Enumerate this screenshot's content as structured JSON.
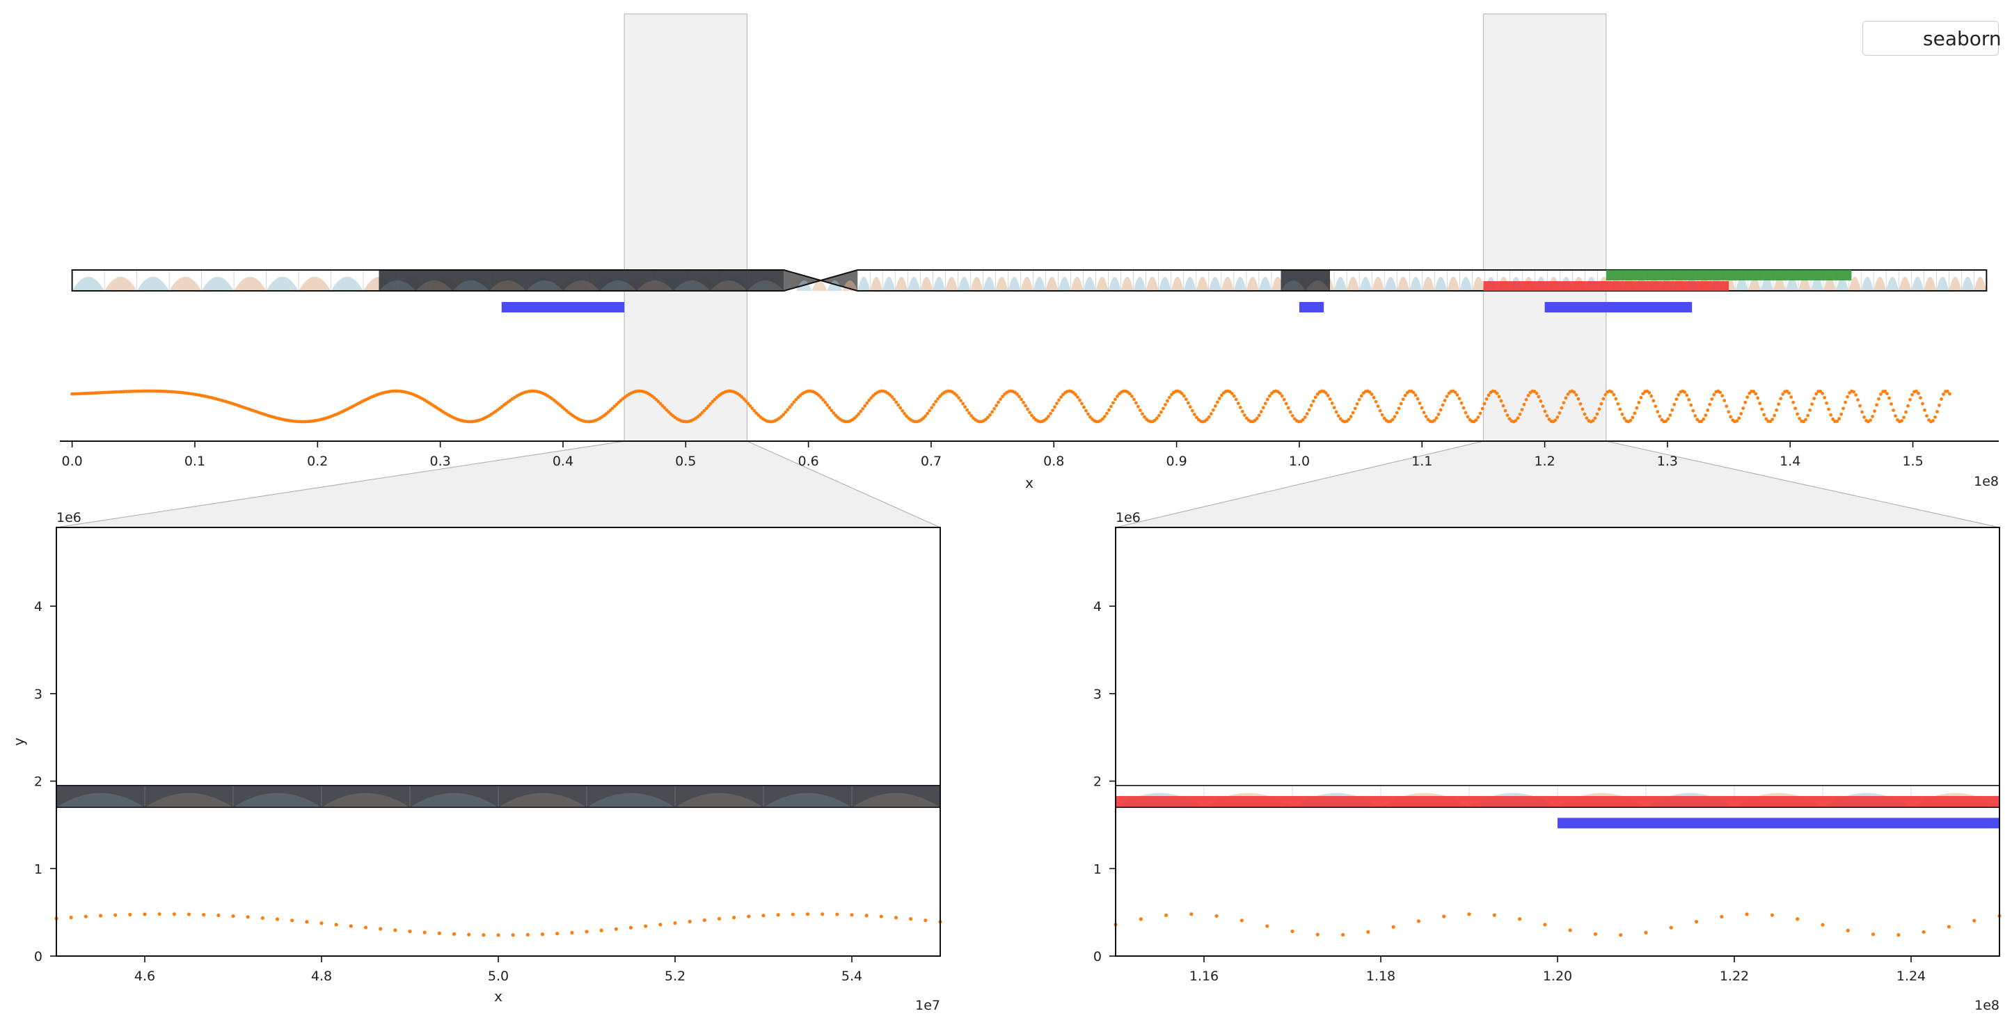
{
  "chart_data": [
    {
      "panel": "top",
      "type": "scatter",
      "xlabel": "x",
      "x_offset_label": "1e8",
      "xlim": [
        -1000000,
        157000000
      ],
      "xticks": [
        0,
        10000000,
        20000000,
        30000000,
        40000000,
        50000000,
        60000000,
        70000000,
        80000000,
        90000000,
        100000000,
        110000000,
        120000000,
        130000000,
        140000000,
        150000000
      ],
      "xtick_labels": [
        "0.0",
        "0.1",
        "0.2",
        "0.3",
        "0.4",
        "0.5",
        "0.6",
        "0.7",
        "0.8",
        "0.9",
        "1.0",
        "1.1",
        "1.2",
        "1.3",
        "1.4",
        "1.5"
      ],
      "series": [
        {
          "name": "seaborn",
          "color": "#ff7f0e",
          "marker": "dot",
          "function": "y = 0.36 + 0.12*sin(2*pi*f(x)*x), frequency increasing along the chromosome",
          "x_range": [
            0,
            153000000
          ]
        }
      ],
      "ideogram": {
        "start": 0,
        "end": 156000000,
        "centromere": [
          58000000,
          64000000
        ],
        "dark_regions": [
          [
            25000000,
            58000000
          ],
          [
            98500000,
            102500000
          ]
        ],
        "stain_colors": [
          "#9ec4d6",
          "#e0b38f"
        ]
      },
      "highlights": [
        {
          "start": 45000000,
          "end": 55000000,
          "color": "#f0f0f0"
        },
        {
          "start": 115000000,
          "end": 125000000,
          "color": "#f0f0f0"
        }
      ],
      "annotations": [
        {
          "start": 35000000,
          "end": 45000000,
          "color": "#4b4bf2",
          "track": "below"
        },
        {
          "start": 100000000,
          "end": 102000000,
          "color": "#4b4bf2",
          "track": "below"
        },
        {
          "start": 120000000,
          "end": 132000000,
          "color": "#4b4bf2",
          "track": "below"
        },
        {
          "start": 115000000,
          "end": 135000000,
          "color": "#f03c3c",
          "track": "lower"
        },
        {
          "start": 125000000,
          "end": 145000000,
          "color": "#3a9a3a",
          "track": "upper"
        }
      ],
      "legend": {
        "location": "top-right",
        "entries": [
          "seaborn"
        ]
      }
    },
    {
      "panel": "zoom-left",
      "type": "scatter",
      "xlabel": "x",
      "ylabel": "y",
      "x_offset_label": "1e7",
      "y_offset_label": "1e6",
      "xlim": [
        45000000,
        55000000
      ],
      "ylim": [
        0,
        4900000
      ],
      "xticks": [
        46000000,
        48000000,
        50000000,
        52000000,
        54000000
      ],
      "xtick_labels": [
        "4.6",
        "4.8",
        "5.0",
        "5.2",
        "5.4"
      ],
      "yticks": [
        0,
        1000000,
        2000000,
        3000000,
        4000000
      ],
      "ytick_labels": [
        "0",
        "1",
        "2",
        "3",
        "4"
      ],
      "ideogram_band": [
        1700000,
        1950000
      ],
      "dot_y_range": [
        240000,
        480000
      ],
      "dot_count": 61
    },
    {
      "panel": "zoom-right",
      "type": "scatter",
      "xlabel": "",
      "x_offset_label": "1e8",
      "y_offset_label": "1e6",
      "xlim": [
        115000000,
        125000000
      ],
      "ylim": [
        0,
        4900000
      ],
      "xticks": [
        116000000,
        118000000,
        120000000,
        122000000,
        124000000
      ],
      "xtick_labels": [
        "1.16",
        "1.18",
        "1.20",
        "1.22",
        "1.24"
      ],
      "yticks": [
        0,
        1000000,
        2000000,
        3000000,
        4000000
      ],
      "ytick_labels": [
        "0",
        "1",
        "2",
        "3",
        "4"
      ],
      "ideogram_band": [
        1700000,
        1950000
      ],
      "red_band": [
        1700000,
        1830000
      ],
      "blue_band": {
        "start": 120000000,
        "end": 125000000,
        "y": [
          1460000,
          1580000
        ]
      },
      "dot_y_range": [
        240000,
        480000
      ],
      "dot_count": 36
    }
  ],
  "colors": {
    "dots": "#ff7f0e",
    "blue": "#4b4bf2",
    "red": "#f03c3c",
    "green": "#3a9a3a",
    "highlight": "#f0f0f0",
    "dark_band": "#353a3f"
  },
  "legend_label": "seaborn"
}
